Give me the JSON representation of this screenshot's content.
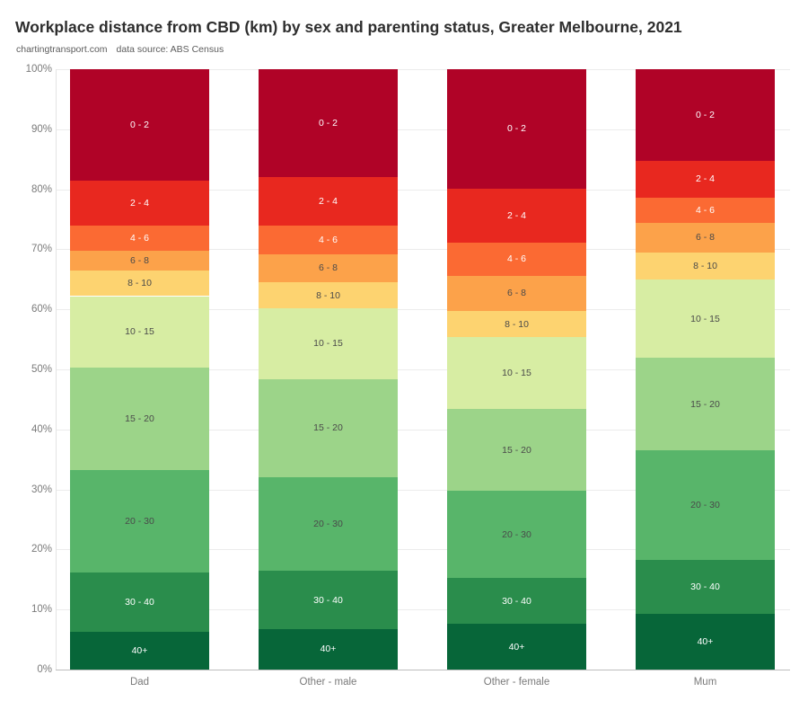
{
  "header": {
    "title": "Workplace distance from CBD (km) by sex and parenting status, Greater Melbourne, 2021",
    "credit": "chartingtransport.com",
    "source": "data source: ABS Census"
  },
  "chart_data": {
    "type": "bar",
    "variant": "100% stacked vertical bars, distance bands stacked top(0-2km) to bottom(40+km)",
    "title": "Workplace distance from CBD (km) by sex and parenting status, Greater Melbourne, 2021",
    "xlabel": "",
    "ylabel": "",
    "unit": "percent of workers",
    "ylim": [
      0,
      100
    ],
    "grid": true,
    "legend_position": "none (segments labelled inside bars)",
    "categories": [
      "Dad",
      "Other - male",
      "Other - female",
      "Mum"
    ],
    "y_axis": {
      "tick_labels": [
        "0%",
        "10%",
        "20%",
        "30%",
        "40%",
        "50%",
        "60%",
        "70%",
        "80%",
        "90%",
        "100%"
      ]
    },
    "series": [
      {
        "name": "0 - 2",
        "color": "#b00327",
        "text_color": "#ffffff",
        "values": [
          18.5,
          18.0,
          19.9,
          15.2
        ]
      },
      {
        "name": "2 - 4",
        "color": "#e8281f",
        "text_color": "#ffffff",
        "values": [
          7.5,
          8.0,
          9.0,
          6.2
        ]
      },
      {
        "name": "4 - 6",
        "color": "#fb6a33",
        "text_color": "#ffffff",
        "values": [
          4.3,
          4.8,
          5.5,
          4.2
        ]
      },
      {
        "name": "6 - 8",
        "color": "#fca24a",
        "text_color": "#4a4a4a",
        "values": [
          3.2,
          4.7,
          5.9,
          4.9
        ]
      },
      {
        "name": "8 - 10",
        "color": "#fdd370",
        "text_color": "#4a4a4a",
        "values": [
          4.3,
          4.3,
          4.3,
          4.5
        ]
      },
      {
        "name": "10 - 15",
        "color": "#d7eda3",
        "text_color": "#4a4a4a",
        "values": [
          11.9,
          11.8,
          12.0,
          13.1
        ]
      },
      {
        "name": "15 - 20",
        "color": "#9cd489",
        "text_color": "#4a4a4a",
        "values": [
          17.1,
          16.3,
          13.6,
          15.4
        ]
      },
      {
        "name": "20 - 30",
        "color": "#58b56a",
        "text_color": "#4a4a4a",
        "values": [
          17.0,
          15.7,
          14.6,
          18.2
        ]
      },
      {
        "name": "30 - 40",
        "color": "#2a8d4c",
        "text_color": "#ffffff",
        "values": [
          9.9,
          9.6,
          7.6,
          9.0
        ]
      },
      {
        "name": "40+",
        "color": "#076639",
        "text_color": "#ffffff",
        "values": [
          6.3,
          6.8,
          7.6,
          9.3
        ]
      }
    ]
  }
}
